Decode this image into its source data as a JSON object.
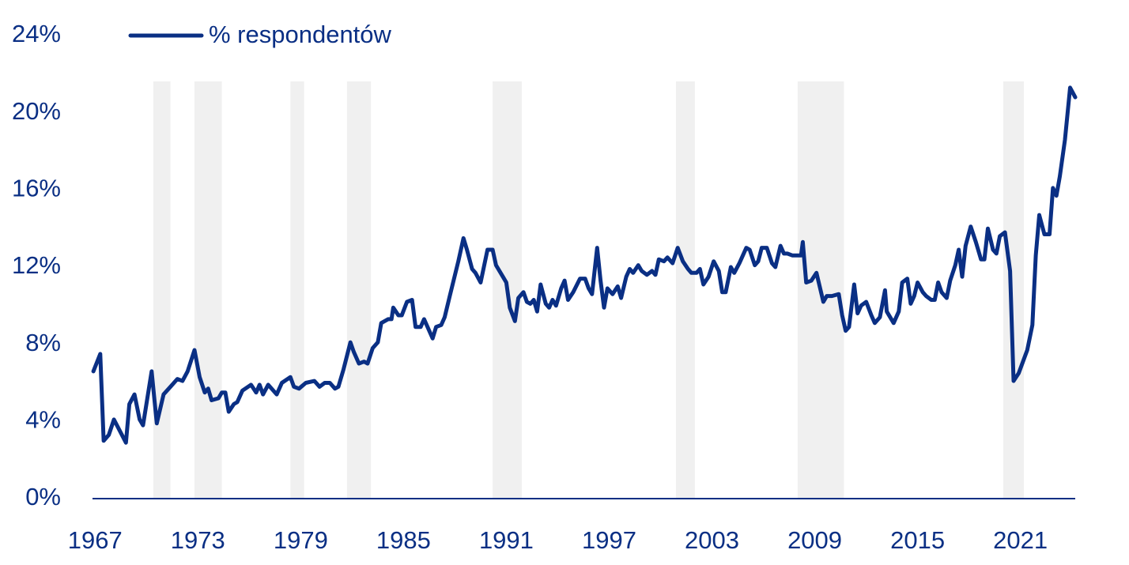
{
  "chart_data": {
    "type": "line",
    "x": [
      1966.9,
      1967.3,
      1967.5,
      1967.8,
      1968.1,
      1968.8,
      1969.0,
      1969.3,
      1969.6,
      1969.8,
      1970.3,
      1970.6,
      1971.0,
      1971.4,
      1971.8,
      1972.1,
      1972.4,
      1972.8,
      1973.1,
      1973.4,
      1973.6,
      1973.8,
      1974.2,
      1974.4,
      1974.6,
      1974.8,
      1975.1,
      1975.3,
      1975.6,
      1976.1,
      1976.4,
      1976.6,
      1976.8,
      1977.1,
      1977.6,
      1977.9,
      1978.4,
      1978.6,
      1978.9,
      1979.3,
      1979.8,
      1980.1,
      1980.4,
      1980.7,
      1981.0,
      1981.2,
      1981.5,
      1981.9,
      1982.1,
      1982.4,
      1982.7,
      1982.9,
      1983.2,
      1983.5,
      1983.7,
      1984.1,
      1984.3,
      1984.4,
      1984.7,
      1984.9,
      1985.2,
      1985.5,
      1985.7,
      1986.0,
      1986.2,
      1986.7,
      1986.9,
      1987.2,
      1987.4,
      1987.7,
      1988.2,
      1988.5,
      1988.7,
      1989.0,
      1989.2,
      1989.5,
      1989.9,
      1990.2,
      1990.4,
      1990.8,
      1991.0,
      1991.2,
      1991.5,
      1991.7,
      1992.0,
      1992.2,
      1992.4,
      1992.6,
      1992.8,
      1993.0,
      1993.3,
      1993.5,
      1993.7,
      1993.9,
      1994.2,
      1994.4,
      1994.6,
      1994.9,
      1995.3,
      1995.6,
      1995.8,
      1996.0,
      1996.3,
      1996.5,
      1996.7,
      1996.9,
      1997.2,
      1997.5,
      1997.7,
      1998.0,
      1998.2,
      1998.4,
      1998.7,
      1998.9,
      1999.2,
      1999.5,
      1999.7,
      1999.9,
      2000.2,
      2000.4,
      2000.7,
      2001.0,
      2001.3,
      2001.6,
      2001.8,
      2002.1,
      2002.3,
      2002.5,
      2002.8,
      2003.1,
      2003.4,
      2003.6,
      2003.8,
      2004.1,
      2004.3,
      2004.6,
      2004.7,
      2005.0,
      2005.2,
      2005.5,
      2005.7,
      2005.9,
      2006.2,
      2006.5,
      2006.7,
      2007.0,
      2007.2,
      2007.4,
      2007.7,
      2007.9,
      2008.2,
      2008.3,
      2008.5,
      2008.8,
      2009.1,
      2009.5,
      2009.7,
      2010.0,
      2010.4,
      2010.6,
      2010.8,
      2011.0,
      2011.3,
      2011.5,
      2011.7,
      2012.0,
      2012.3,
      2012.5,
      2012.8,
      2013.1,
      2013.2,
      2013.6,
      2013.9,
      2014.1,
      2014.4,
      2014.6,
      2014.8,
      2015.0,
      2015.3,
      2015.5,
      2015.8,
      2016.0,
      2016.2,
      2016.4,
      2016.7,
      2016.9,
      2017.2,
      2017.4,
      2017.6,
      2017.8,
      2018.1,
      2018.4,
      2018.7,
      2018.9,
      2019.1,
      2019.4,
      2019.6,
      2019.8,
      2020.1,
      2020.4,
      2020.6,
      2020.9,
      2021.4,
      2021.7,
      2021.9,
      2022.1,
      2022.4,
      2022.7,
      2022.9,
      2023.1,
      2023.3,
      2023.6,
      2023.9,
      2024.2
    ],
    "series": [
      {
        "name": "% respondentów",
        "color": "#0a2f84",
        "values": [
          6.6,
          7.5,
          3.0,
          3.3,
          4.1,
          2.9,
          4.9,
          5.4,
          4.1,
          3.8,
          6.6,
          3.9,
          5.4,
          5.8,
          6.2,
          6.1,
          6.6,
          7.7,
          6.3,
          5.5,
          5.7,
          5.1,
          5.2,
          5.5,
          5.5,
          4.5,
          4.9,
          5.0,
          5.6,
          5.9,
          5.5,
          5.9,
          5.4,
          5.9,
          5.4,
          6.0,
          6.3,
          5.8,
          5.7,
          6.0,
          6.1,
          5.8,
          6.0,
          6.0,
          5.7,
          5.8,
          6.7,
          8.1,
          7.6,
          7.0,
          7.1,
          7.0,
          7.8,
          8.1,
          9.1,
          9.3,
          9.3,
          9.9,
          9.5,
          9.5,
          10.2,
          10.3,
          8.9,
          8.9,
          9.3,
          8.3,
          8.9,
          9.0,
          9.4,
          10.5,
          12.3,
          13.5,
          12.9,
          11.9,
          11.7,
          11.2,
          12.9,
          12.9,
          12.1,
          11.5,
          11.2,
          9.9,
          9.2,
          10.4,
          10.7,
          10.2,
          10.1,
          10.3,
          9.7,
          11.1,
          10.1,
          9.9,
          10.3,
          10.0,
          10.9,
          11.3,
          10.3,
          10.7,
          11.4,
          11.4,
          10.9,
          10.6,
          13.0,
          11.3,
          9.9,
          10.9,
          10.6,
          11.0,
          10.4,
          11.5,
          11.9,
          11.7,
          12.1,
          11.8,
          11.6,
          11.8,
          11.6,
          12.4,
          12.3,
          12.5,
          12.2,
          13.0,
          12.3,
          11.9,
          11.7,
          11.7,
          11.9,
          11.1,
          11.5,
          12.3,
          11.8,
          10.7,
          10.7,
          12.0,
          11.7,
          12.2,
          12.4,
          13.0,
          12.9,
          12.1,
          12.3,
          13.0,
          13.0,
          12.2,
          12.0,
          13.1,
          12.7,
          12.7,
          12.6,
          12.6,
          12.6,
          13.3,
          11.2,
          11.3,
          11.7,
          10.2,
          10.5,
          10.5,
          10.6,
          9.5,
          8.7,
          8.9,
          11.1,
          9.6,
          10.0,
          10.2,
          9.5,
          9.1,
          9.4,
          10.8,
          9.7,
          9.1,
          9.7,
          11.2,
          11.4,
          10.1,
          10.5,
          11.2,
          10.7,
          10.5,
          10.3,
          10.3,
          11.2,
          10.7,
          10.4,
          11.3,
          12.1,
          12.9,
          11.5,
          13.1,
          14.1,
          13.3,
          12.4,
          12.4,
          14.0,
          12.9,
          12.7,
          13.6,
          13.8,
          11.8,
          6.1,
          6.5,
          7.7,
          9.0,
          12.6,
          14.7,
          13.7,
          13.7,
          16.1,
          15.7,
          16.7,
          18.6,
          21.3,
          20.8
        ]
      }
    ],
    "shaded_periods": [
      [
        1970.4,
        1971.4
      ],
      [
        1972.8,
        1974.4
      ],
      [
        1978.4,
        1979.2
      ],
      [
        1981.7,
        1983.1
      ],
      [
        1990.2,
        1991.9
      ],
      [
        2000.9,
        2002.0
      ],
      [
        2008.0,
        2010.7
      ],
      [
        2020.0,
        2021.2
      ]
    ],
    "shade_color": "#f0f0f0",
    "xlim": [
      1966.85,
      2024.2
    ],
    "xticks": [
      1967,
      1973,
      1979,
      1985,
      1991,
      1997,
      2003,
      2009,
      2015,
      2021
    ],
    "ylim": [
      0,
      24
    ],
    "yticks": [
      {
        "value": 0,
        "label": "0%"
      },
      {
        "value": 4,
        "label": "4%"
      },
      {
        "value": 8,
        "label": "8%"
      },
      {
        "value": 12,
        "label": "12%"
      },
      {
        "value": 16,
        "label": "16%"
      },
      {
        "value": 20,
        "label": "20%"
      },
      {
        "value": 24,
        "label": "24%"
      }
    ],
    "legend": "top-left"
  }
}
